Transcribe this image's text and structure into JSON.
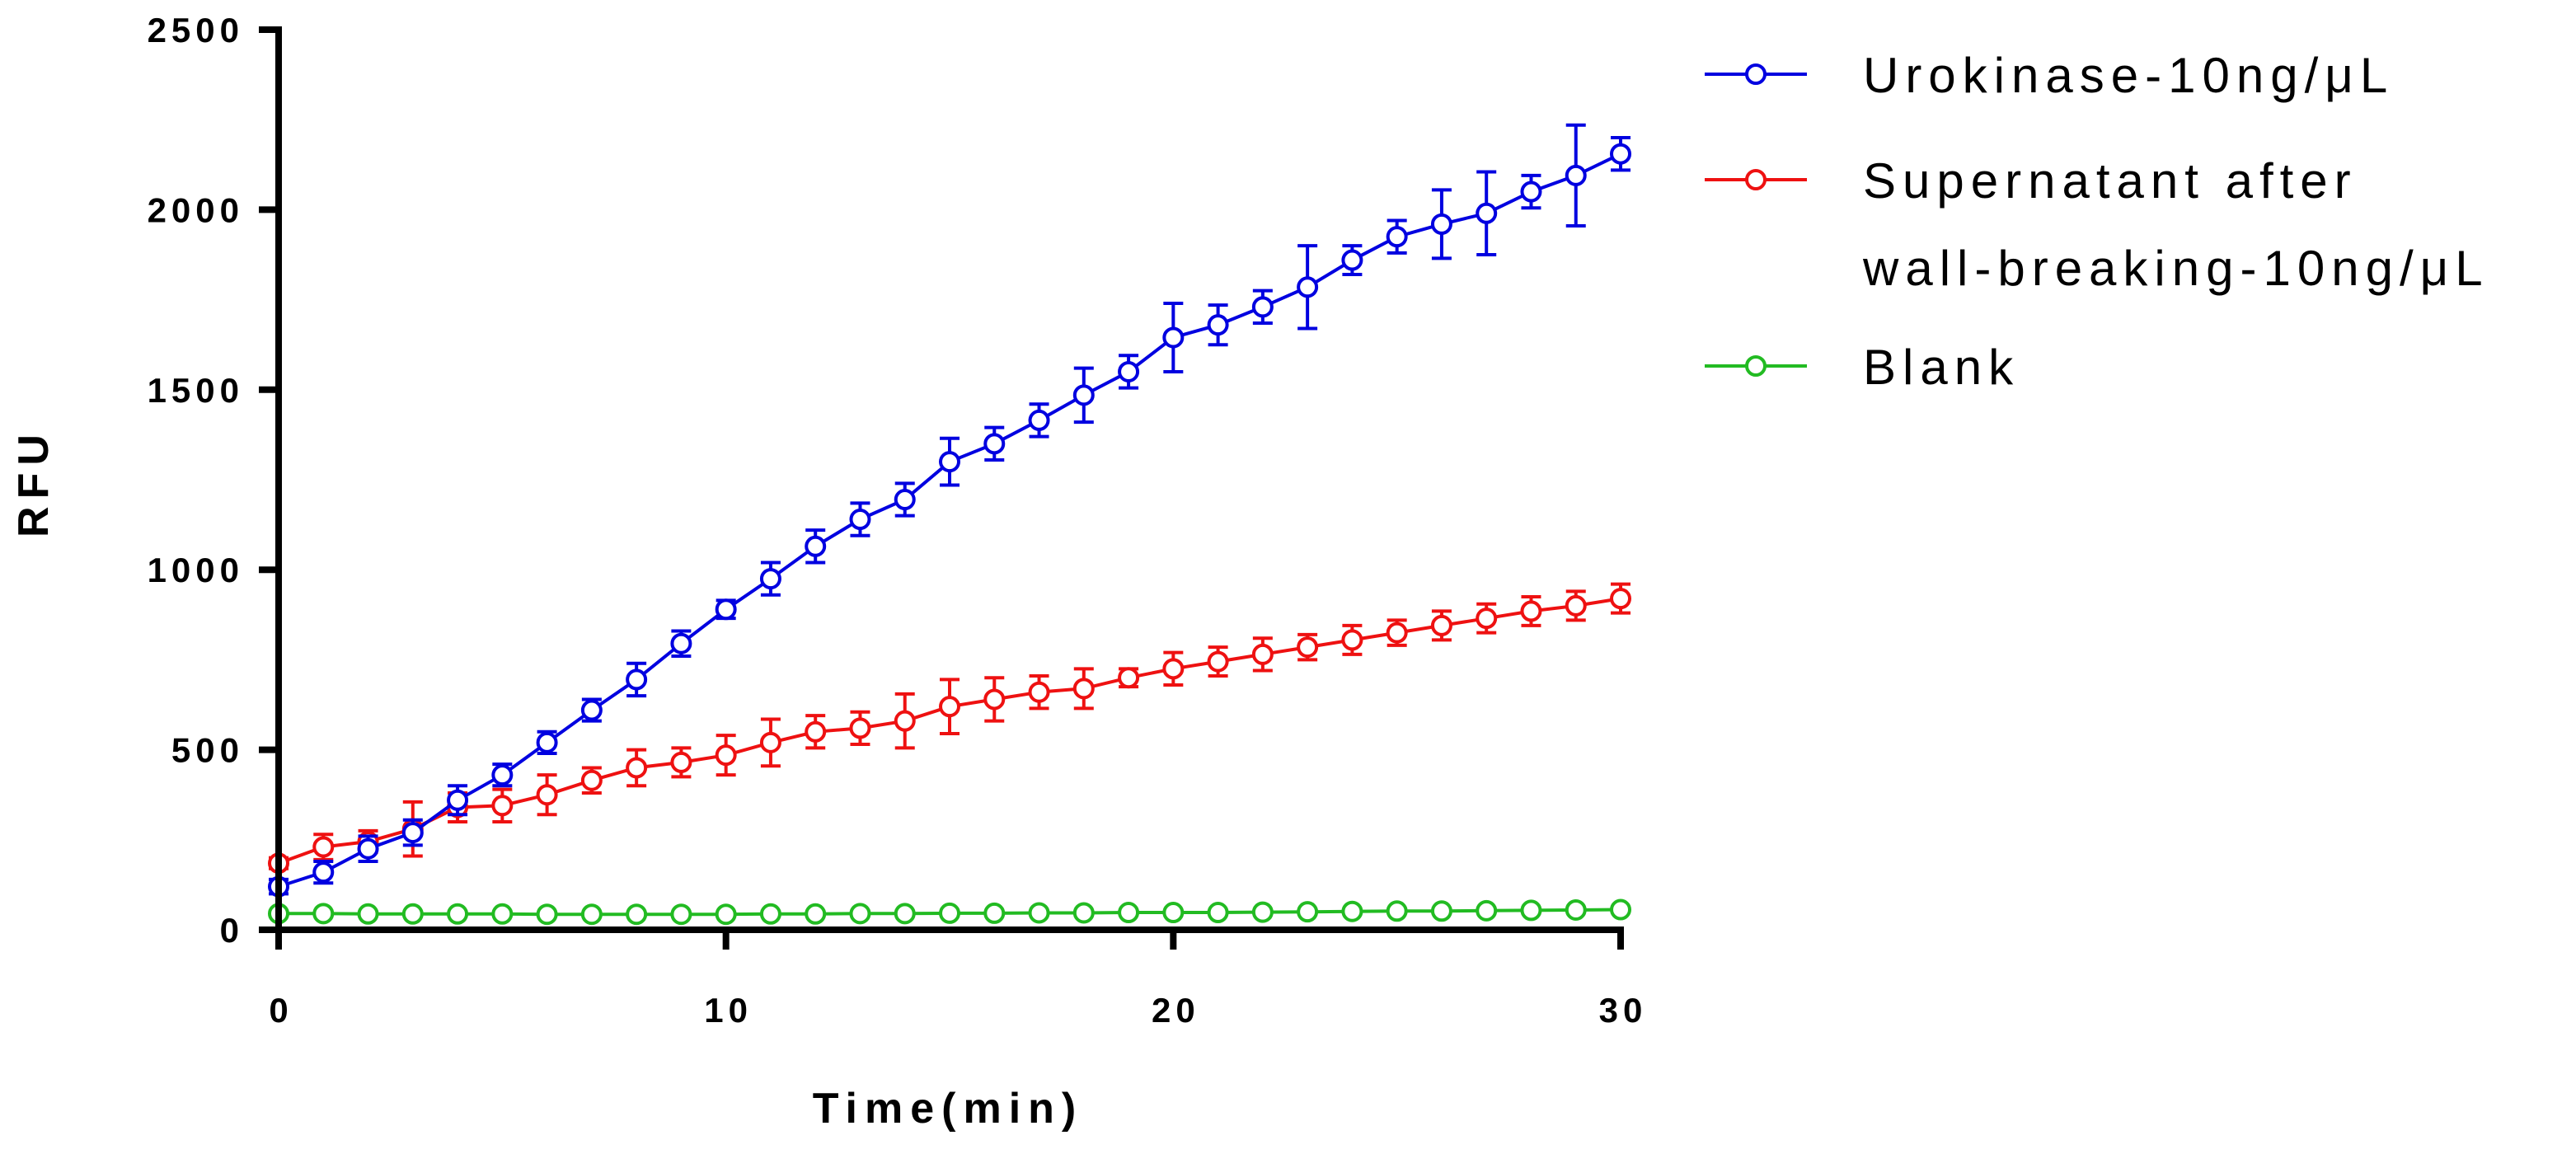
{
  "chart_data": {
    "type": "line",
    "title": "",
    "xlabel": "Time(min)",
    "ylabel": "RFU",
    "xlim": [
      0,
      30
    ],
    "ylim": [
      0,
      2500
    ],
    "xticks": [
      "0",
      "10",
      "20",
      "30"
    ],
    "yticks": [
      "0",
      "500",
      "1000",
      "1500",
      "2000",
      "2500"
    ],
    "grid": false,
    "legend_position": "right",
    "x": [
      0,
      1,
      2,
      3,
      4,
      5,
      6,
      7,
      8,
      9,
      10,
      11,
      12,
      13,
      14,
      15,
      16,
      17,
      18,
      19,
      20,
      21,
      22,
      23,
      24,
      25,
      26,
      27,
      28,
      29,
      30
    ],
    "series": [
      {
        "name": "Urokinase-10ng/μL",
        "legend_lines": [
          "Urokinase-10ng/μL"
        ],
        "color": "#0000e0",
        "values": [
          120,
          160,
          225,
          270,
          360,
          430,
          520,
          610,
          695,
          795,
          890,
          975,
          1065,
          1140,
          1195,
          1300,
          1350,
          1415,
          1485,
          1550,
          1645,
          1680,
          1730,
          1785,
          1860,
          1925,
          1960,
          1990,
          2050,
          2095,
          2155
        ],
        "errors": [
          20,
          30,
          35,
          35,
          40,
          30,
          30,
          30,
          45,
          35,
          25,
          45,
          45,
          45,
          45,
          65,
          45,
          45,
          75,
          45,
          95,
          55,
          45,
          115,
          40,
          45,
          95,
          115,
          45,
          140,
          45
        ]
      },
      {
        "name": "Supernatant after wall-breaking-10ng/μL",
        "legend_lines": [
          "Supernatant after",
          "wall-breaking-10ng/μL"
        ],
        "color": "#ee1111",
        "values": [
          185,
          230,
          245,
          280,
          340,
          345,
          375,
          415,
          450,
          465,
          485,
          520,
          550,
          560,
          580,
          620,
          640,
          660,
          670,
          700,
          725,
          745,
          765,
          785,
          805,
          825,
          845,
          865,
          885,
          900,
          920
        ],
        "errors": [
          15,
          35,
          30,
          75,
          40,
          45,
          55,
          35,
          50,
          40,
          55,
          65,
          45,
          45,
          75,
          75,
          60,
          45,
          55,
          25,
          45,
          40,
          45,
          35,
          40,
          35,
          40,
          40,
          40,
          40,
          40
        ]
      },
      {
        "name": "Blank",
        "legend_lines": [
          "Blank"
        ],
        "color": "#22bb22",
        "values": [
          45,
          45,
          44,
          44,
          44,
          44,
          43,
          43,
          43,
          43,
          43,
          44,
          44,
          45,
          45,
          46,
          46,
          47,
          47,
          48,
          48,
          48,
          49,
          50,
          51,
          52,
          52,
          53,
          54,
          55,
          56
        ],
        "errors": [
          0,
          0,
          0,
          0,
          0,
          0,
          0,
          0,
          0,
          0,
          0,
          0,
          0,
          0,
          0,
          0,
          0,
          0,
          0,
          0,
          0,
          0,
          0,
          0,
          0,
          0,
          0,
          0,
          0,
          0,
          0
        ]
      }
    ]
  }
}
